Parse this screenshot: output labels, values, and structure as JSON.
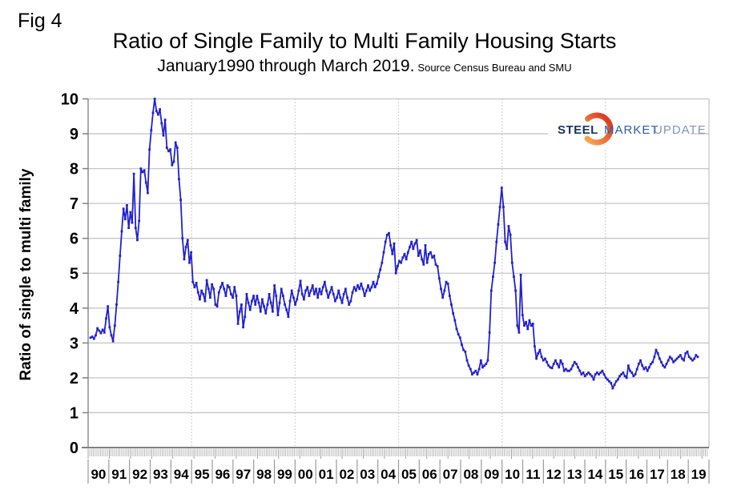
{
  "fig_label": "Fig 4",
  "title": "Ratio of Single Family to Multi Family Housing Starts",
  "subtitle": "January1990 through March 2019.",
  "source_note": "Source Census Bureau and SMU",
  "logo": {
    "steel": "STEEL",
    "market": "MARKET",
    "update": "UPDATE"
  },
  "colors": {
    "line": "#2222cc",
    "grid": "#c6c6c6",
    "axis": "#808080",
    "tick_comb": "#aaaaaa",
    "cell_separator": "#9a9a9a",
    "logo_orange_top": "#f6a14f",
    "logo_orange_bottom": "#dd3e23"
  },
  "chart_data": {
    "type": "line",
    "title": "Ratio of Single Family to Multi Family Housing Starts",
    "subtitle": "January1990 through March 2019. Source Census Bureau and SMU",
    "xlabel": "",
    "ylabel": "Ratio of single to multi family",
    "ylim": [
      0,
      10
    ],
    "y_ticks": [
      0,
      1,
      2,
      3,
      4,
      5,
      6,
      7,
      8,
      9,
      10
    ],
    "grid": "on",
    "legend_position": "none",
    "x_year_labels": [
      "90",
      "91",
      "92",
      "93",
      "94",
      "95",
      "96",
      "97",
      "98",
      "99",
      "00",
      "01",
      "02",
      "03",
      "04",
      "05",
      "06",
      "07",
      "08",
      "09",
      "10",
      "11",
      "12",
      "13",
      "14",
      "15",
      "16",
      "17",
      "18",
      "19"
    ],
    "dotted_vertical_gridline_years": [
      "95",
      "00",
      "05",
      "10",
      "15"
    ],
    "x_start_month": "1990-01",
    "x_end_month": "2019-03",
    "series": [
      {
        "name": "Ratio of single to multi family housing starts",
        "frequency": "monthly",
        "monthly_values": [
          3.15,
          3.18,
          3.12,
          3.22,
          3.42,
          3.35,
          3.28,
          3.38,
          3.3,
          3.7,
          4.05,
          3.45,
          3.22,
          3.05,
          3.5,
          4.1,
          4.75,
          5.5,
          6.2,
          6.85,
          6.55,
          6.95,
          6.3,
          6.75,
          6.45,
          7.85,
          6.3,
          5.95,
          6.5,
          8.0,
          7.9,
          7.95,
          7.6,
          7.3,
          8.55,
          9.1,
          9.6,
          10.0,
          9.65,
          9.55,
          9.7,
          9.3,
          8.95,
          9.4,
          8.6,
          8.5,
          8.55,
          8.1,
          8.2,
          8.75,
          8.6,
          7.7,
          7.1,
          6.0,
          5.4,
          5.75,
          5.95,
          5.3,
          5.6,
          4.75,
          4.6,
          4.72,
          4.45,
          4.25,
          4.5,
          4.4,
          4.2,
          4.8,
          4.55,
          4.3,
          4.68,
          4.55,
          4.1,
          4.05,
          4.45,
          4.6,
          4.72,
          4.55,
          4.35,
          4.65,
          4.6,
          4.4,
          4.3,
          4.6,
          4.35,
          3.55,
          3.9,
          4.1,
          3.45,
          3.75,
          4.4,
          4.15,
          3.95,
          4.2,
          4.35,
          4.1,
          4.35,
          4.15,
          3.9,
          4.25,
          4.05,
          3.85,
          4.1,
          4.4,
          4.15,
          3.9,
          4.65,
          4.35,
          3.8,
          4.15,
          4.55,
          4.35,
          4.1,
          3.95,
          3.75,
          4.2,
          4.5,
          4.3,
          4.1,
          4.25,
          4.5,
          4.78,
          4.4,
          4.25,
          4.5,
          4.6,
          4.35,
          4.5,
          4.65,
          4.4,
          4.55,
          4.3,
          4.55,
          4.4,
          4.6,
          4.75,
          4.5,
          4.3,
          4.45,
          4.6,
          4.4,
          4.2,
          4.3,
          4.5,
          4.3,
          4.15,
          4.4,
          4.55,
          4.3,
          4.1,
          4.2,
          4.45,
          4.6,
          4.5,
          4.65,
          4.55,
          4.7,
          4.55,
          4.35,
          4.5,
          4.65,
          4.5,
          4.6,
          4.75,
          4.6,
          4.7,
          4.9,
          5.1,
          5.3,
          5.6,
          5.9,
          6.1,
          6.15,
          5.8,
          5.55,
          5.85,
          5.0,
          5.2,
          5.35,
          5.3,
          5.45,
          5.55,
          5.4,
          5.6,
          5.75,
          5.9,
          5.7,
          5.85,
          5.95,
          5.5,
          5.65,
          5.4,
          5.25,
          5.8,
          5.3,
          5.55,
          5.6,
          5.45,
          5.5,
          5.25,
          5.2,
          4.85,
          4.55,
          4.3,
          4.5,
          4.75,
          4.7,
          4.35,
          4.1,
          3.85,
          3.65,
          3.4,
          3.25,
          3.15,
          2.95,
          2.8,
          2.75,
          2.5,
          2.35,
          2.25,
          2.1,
          2.15,
          2.2,
          2.1,
          2.25,
          2.5,
          2.3,
          2.35,
          2.4,
          2.5,
          3.3,
          4.5,
          4.9,
          5.3,
          5.9,
          6.4,
          6.9,
          7.45,
          6.9,
          5.9,
          5.7,
          6.35,
          6.1,
          5.3,
          4.9,
          4.5,
          3.5,
          3.3,
          4.95,
          3.8,
          3.5,
          3.6,
          3.4,
          3.65,
          3.5,
          3.55,
          2.9,
          2.55,
          2.7,
          2.8,
          2.6,
          2.5,
          2.55,
          2.45,
          2.35,
          2.3,
          2.28,
          2.4,
          2.5,
          2.4,
          2.3,
          2.5,
          2.4,
          2.2,
          2.25,
          2.2,
          2.2,
          2.25,
          2.35,
          2.45,
          2.4,
          2.3,
          2.2,
          2.1,
          2.15,
          2.05,
          2.1,
          2.15,
          2.1,
          2.05,
          1.95,
          2.1,
          2.15,
          2.1,
          2.15,
          2.2,
          2.1,
          2.0,
          1.95,
          1.9,
          1.85,
          1.7,
          1.8,
          1.9,
          1.95,
          2.05,
          2.1,
          2.15,
          2.05,
          2.0,
          2.35,
          2.2,
          2.15,
          2.05,
          2.1,
          2.25,
          2.4,
          2.5,
          2.35,
          2.25,
          2.3,
          2.2,
          2.3,
          2.4,
          2.45,
          2.6,
          2.8,
          2.7,
          2.55,
          2.45,
          2.35,
          2.3,
          2.4,
          2.5,
          2.6,
          2.55,
          2.45,
          2.5,
          2.55,
          2.6,
          2.65,
          2.55,
          2.5,
          2.7,
          2.75,
          2.6,
          2.55,
          2.5,
          2.55,
          2.65,
          2.6
        ]
      }
    ]
  }
}
